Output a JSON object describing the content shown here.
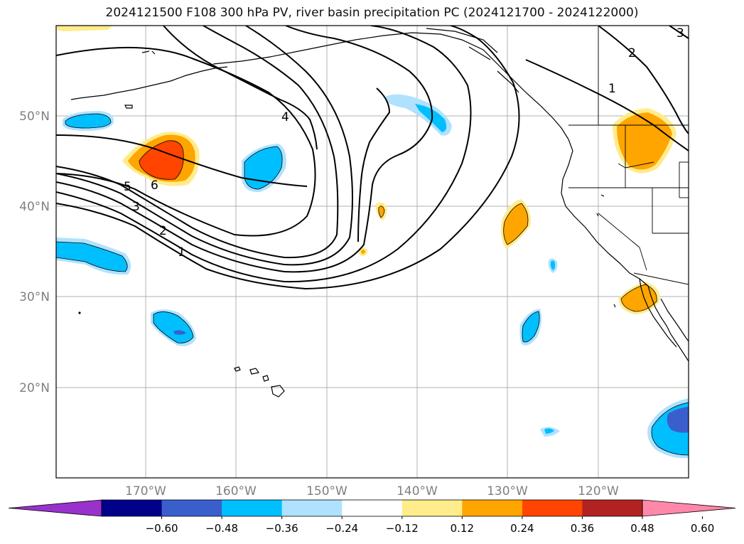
{
  "title": "2024121500 F108 300 hPa PV, river basin precipitation PC (2024121700 - 2024122000)",
  "lat_labels": [
    "50°N",
    "40°N",
    "30°N",
    "20°N"
  ],
  "lon_labels": [
    "170°W",
    "160°W",
    "150°W",
    "140°W",
    "130°W",
    "120°W"
  ],
  "contour_labels": [
    "4",
    "5",
    "6",
    "3",
    "2",
    "1",
    "2",
    "1",
    "3"
  ],
  "colorbar": {
    "ticks": [
      "−0.60",
      "−0.48",
      "−0.36",
      "−0.24",
      "−0.12",
      "0.12",
      "0.24",
      "0.36",
      "0.48",
      "0.60"
    ],
    "colors": [
      "#9932cc",
      "#00008b",
      "#3a5fcd",
      "#00bfff",
      "#b0e2ff",
      "#ffffff",
      "#ffec8b",
      "#ffa500",
      "#ff4500",
      "#b22222",
      "#ff88aa"
    ]
  }
}
